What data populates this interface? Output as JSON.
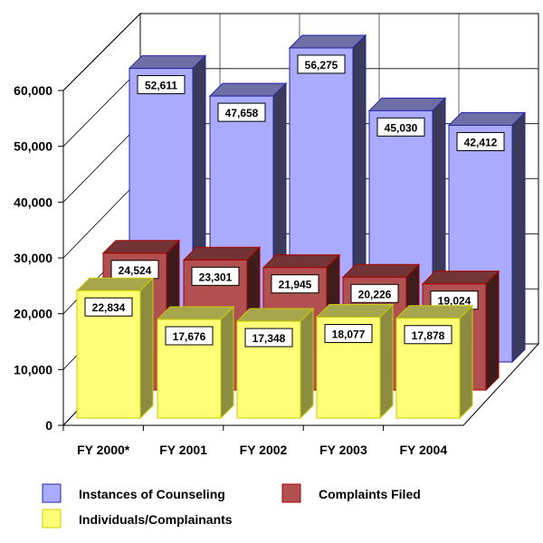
{
  "chart_data": {
    "type": "bar",
    "title": "",
    "xlabel": "",
    "ylabel": "",
    "ylim": [
      0,
      60000
    ],
    "y_ticks": [
      "0",
      "10,000",
      "20,000",
      "30,000",
      "40,000",
      "50,000",
      "60,000"
    ],
    "categories": [
      "FY 2000*",
      "FY 2001",
      "FY 2002",
      "FY 2003",
      "FY 2004"
    ],
    "grid": true,
    "legend_position": "bottom",
    "series": [
      {
        "name": "Instances of Counseling",
        "color": "#aaaaff",
        "values": [
          52611,
          47658,
          56275,
          45030,
          42412
        ],
        "value_labels": [
          "52,611",
          "47,658",
          "56,275",
          "45,030",
          "42,412"
        ]
      },
      {
        "name": "Complaints Filed",
        "color": "#b05050",
        "values": [
          24524,
          23301,
          21945,
          20226,
          19024
        ],
        "value_labels": [
          "24,524",
          "23,301",
          "21,945",
          "20,226",
          "19,024"
        ]
      },
      {
        "name": "Individuals/Complainants",
        "color": "#ffff77",
        "values": [
          22834,
          17676,
          17348,
          18077,
          17878
        ],
        "value_labels": [
          "22,834",
          "17,676",
          "17,348",
          "18,077",
          "17,878"
        ]
      }
    ]
  }
}
